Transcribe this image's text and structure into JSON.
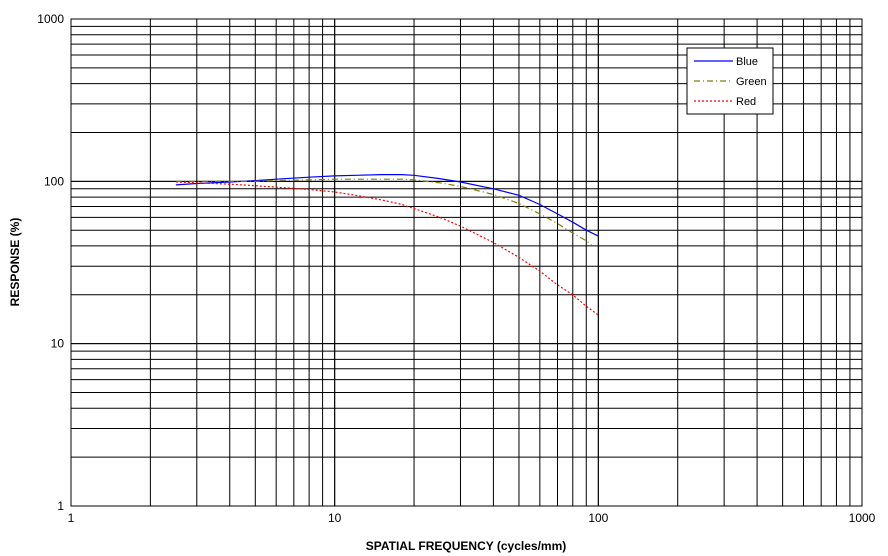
{
  "chart_data": {
    "type": "line",
    "xscale": "log",
    "yscale": "log",
    "xlabel": "SPATIAL FREQUENCY (cycles/mm)",
    "ylabel": "RESPONSE (%)",
    "xlim": [
      1,
      1000
    ],
    "ylim": [
      1,
      1000
    ],
    "xticks": [
      {
        "value": 1,
        "label": "1"
      },
      {
        "value": 10,
        "label": "10"
      },
      {
        "value": 100,
        "label": "100"
      },
      {
        "value": 1000,
        "label": "1000"
      }
    ],
    "yticks": [
      {
        "value": 1,
        "label": "1"
      },
      {
        "value": 10,
        "label": "10"
      },
      {
        "value": 100,
        "label": "100"
      },
      {
        "value": 1000,
        "label": "1000"
      }
    ],
    "grid": true,
    "legend_position": "top-right",
    "series": [
      {
        "name": "Blue",
        "color": "#0000ff",
        "dash": "solid",
        "x": [
          2.5,
          3,
          4,
          5,
          6,
          8,
          10,
          12,
          15,
          18,
          20,
          25,
          30,
          40,
          50,
          60,
          70,
          80,
          90,
          100
        ],
        "y": [
          95,
          97,
          99,
          101,
          103,
          106,
          108,
          109,
          110,
          110,
          109,
          104,
          99,
          90,
          82,
          72,
          63,
          56,
          50,
          46
        ]
      },
      {
        "name": "Green",
        "color": "#808000",
        "dash": "dashdot",
        "x": [
          2.5,
          3,
          4,
          5,
          6,
          8,
          10,
          12,
          15,
          18,
          20,
          25,
          30,
          40,
          50,
          60,
          70,
          80,
          90,
          95
        ],
        "y": [
          100,
          100,
          100,
          100,
          101,
          102,
          103,
          103,
          103,
          103,
          102,
          98,
          93,
          83,
          73,
          63,
          55,
          48,
          43,
          40
        ]
      },
      {
        "name": "Red",
        "color": "#ff0000",
        "dash": "dotted",
        "x": [
          2.5,
          3,
          4,
          5,
          6,
          8,
          10,
          12,
          15,
          18,
          20,
          25,
          30,
          40,
          50,
          60,
          70,
          80,
          90,
          100
        ],
        "y": [
          99,
          98,
          96,
          94,
          92,
          89,
          86,
          82,
          77,
          72,
          68,
          60,
          53,
          42,
          34,
          28,
          23,
          20,
          17,
          15
        ]
      }
    ]
  }
}
